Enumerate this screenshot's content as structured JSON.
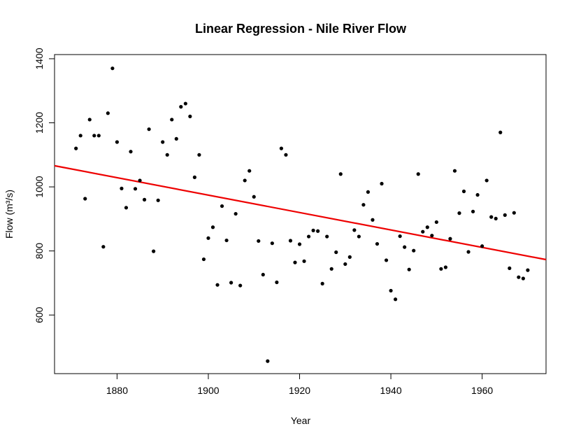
{
  "chart_data": {
    "type": "scatter",
    "title": "Linear Regression - Nile River Flow",
    "xlabel": "Year",
    "ylabel": "Flow (m³/s)",
    "xlim": [
      1866.3,
      1974.0
    ],
    "ylim": [
      417,
      1413
    ],
    "xticks": [
      1880,
      1900,
      1920,
      1940,
      1960
    ],
    "yticks": [
      600,
      800,
      1000,
      1200,
      1400
    ],
    "grid": false,
    "point_color": "#000000",
    "line_color": "#ee0000",
    "series": [
      {
        "x": [
          1871,
          1872,
          1873,
          1874,
          1875,
          1876,
          1877,
          1878,
          1879,
          1880,
          1881,
          1882,
          1883,
          1884,
          1885,
          1886,
          1887,
          1888,
          1889,
          1890,
          1891,
          1892,
          1893,
          1894,
          1895,
          1896,
          1897,
          1898,
          1899,
          1900,
          1901,
          1902,
          1903,
          1904,
          1905,
          1906,
          1907,
          1908,
          1909,
          1910,
          1911,
          1912,
          1913,
          1914,
          1915,
          1916,
          1917,
          1918,
          1919,
          1920,
          1921,
          1922,
          1923,
          1924,
          1925,
          1926,
          1927,
          1928,
          1929,
          1930,
          1931,
          1932,
          1933,
          1934,
          1935,
          1936,
          1937,
          1938,
          1939,
          1940,
          1941,
          1942,
          1943,
          1944,
          1945,
          1946,
          1947,
          1948,
          1949,
          1950,
          1951,
          1952,
          1953,
          1954,
          1955,
          1956,
          1957,
          1958,
          1959,
          1960,
          1961,
          1962,
          1963,
          1964,
          1965,
          1966,
          1967,
          1968,
          1969,
          1970
        ],
        "y": [
          1120,
          1160,
          963,
          1210,
          1160,
          1160,
          813,
          1230,
          1370,
          1140,
          995,
          935,
          1110,
          994,
          1020,
          960,
          1180,
          799,
          958,
          1140,
          1100,
          1210,
          1150,
          1250,
          1260,
          1220,
          1030,
          1100,
          774,
          840,
          874,
          694,
          940,
          833,
          701,
          916,
          692,
          1020,
          1050,
          969,
          831,
          726,
          456,
          824,
          702,
          1120,
          1100,
          832,
          764,
          821,
          768,
          845,
          864,
          862,
          698,
          845,
          744,
          796,
          1040,
          759,
          781,
          865,
          845,
          944,
          984,
          897,
          822,
          1010,
          771,
          676,
          649,
          846,
          812,
          742,
          801,
          1040,
          860,
          874,
          848,
          890,
          744,
          749,
          838,
          1050,
          918,
          986,
          797,
          923,
          975,
          815,
          1020,
          906,
          901,
          1170,
          912,
          746,
          919,
          718,
          714,
          740
        ]
      }
    ],
    "regression": {
      "x": [
        1866.3,
        1974.0
      ],
      "y": [
        1066,
        773
      ]
    }
  }
}
